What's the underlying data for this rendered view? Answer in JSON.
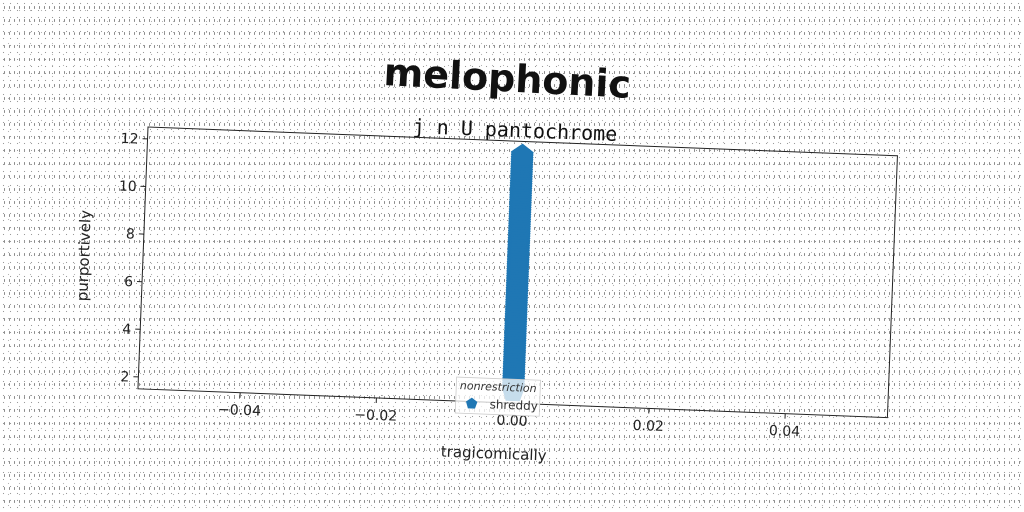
{
  "chart_data": {
    "type": "scatter",
    "title": "melophonic",
    "subtitle": "j n U pantochrome",
    "xlabel": "tragicomically",
    "ylabel": "purportively",
    "xlim": [
      -0.055,
      0.055
    ],
    "ylim": [
      1.5,
      12.5
    ],
    "xticks": [
      -0.04,
      -0.02,
      0.0,
      0.02,
      0.04
    ],
    "xtick_labels": [
      "−0.04",
      "−0.02",
      "0.00",
      "0.02",
      "0.04"
    ],
    "yticks": [
      2,
      4,
      6,
      8,
      10,
      12
    ],
    "ytick_labels": [
      "2",
      "4",
      "6",
      "8",
      "10",
      "12"
    ],
    "grid": false,
    "legend": {
      "title": "nonrestriction",
      "placement": "lower-center"
    },
    "series": [
      {
        "name": "shreddy",
        "marker": "pentagon",
        "color": "#1f77b4",
        "x": [
          0,
          0,
          0,
          0,
          0,
          0,
          0,
          0,
          0,
          0,
          0,
          0,
          0,
          0,
          0,
          0,
          0,
          0,
          0,
          0,
          0,
          0,
          0,
          0,
          0,
          0,
          0,
          0,
          0,
          0,
          0,
          0,
          0,
          0,
          0,
          0,
          0,
          0,
          0,
          0,
          0,
          0,
          0,
          0,
          0,
          0,
          0,
          0,
          0,
          0,
          0,
          0,
          0,
          0,
          0,
          0,
          0,
          0,
          0,
          0,
          0,
          0,
          0,
          0,
          0,
          0,
          0,
          0,
          0,
          0,
          0,
          0,
          0,
          0,
          0,
          0,
          0,
          0,
          0,
          0,
          0,
          0,
          0,
          0,
          0,
          0,
          0,
          0,
          0,
          0,
          0,
          0,
          0,
          0,
          0,
          0,
          0,
          0,
          0,
          0
        ],
        "y": [
          2.0,
          2.1,
          2.2,
          2.3,
          2.4,
          2.5,
          2.6,
          2.7,
          2.8,
          2.9,
          3.0,
          3.1,
          3.2,
          3.3,
          3.4,
          3.5,
          3.6,
          3.7,
          3.8,
          3.9,
          4.0,
          4.1,
          4.2,
          4.3,
          4.4,
          4.5,
          4.6,
          4.7,
          4.8,
          4.9,
          5.0,
          5.1,
          5.2,
          5.3,
          5.4,
          5.5,
          5.6,
          5.7,
          5.8,
          5.9,
          6.0,
          6.1,
          6.2,
          6.3,
          6.4,
          6.5,
          6.6,
          6.7,
          6.8,
          6.9,
          7.0,
          7.1,
          7.2,
          7.3,
          7.4,
          7.5,
          7.6,
          7.7,
          7.8,
          7.9,
          8.0,
          8.1,
          8.2,
          8.3,
          8.4,
          8.5,
          8.6,
          8.7,
          8.8,
          8.9,
          9.0,
          9.1,
          9.2,
          9.3,
          9.4,
          9.5,
          9.6,
          9.7,
          9.8,
          9.9,
          10.0,
          10.1,
          10.2,
          10.3,
          10.4,
          10.5,
          10.6,
          10.7,
          10.8,
          10.9,
          11.0,
          11.1,
          11.2,
          11.3,
          11.4,
          11.5,
          11.6,
          11.7,
          11.8,
          11.9
        ]
      }
    ]
  }
}
